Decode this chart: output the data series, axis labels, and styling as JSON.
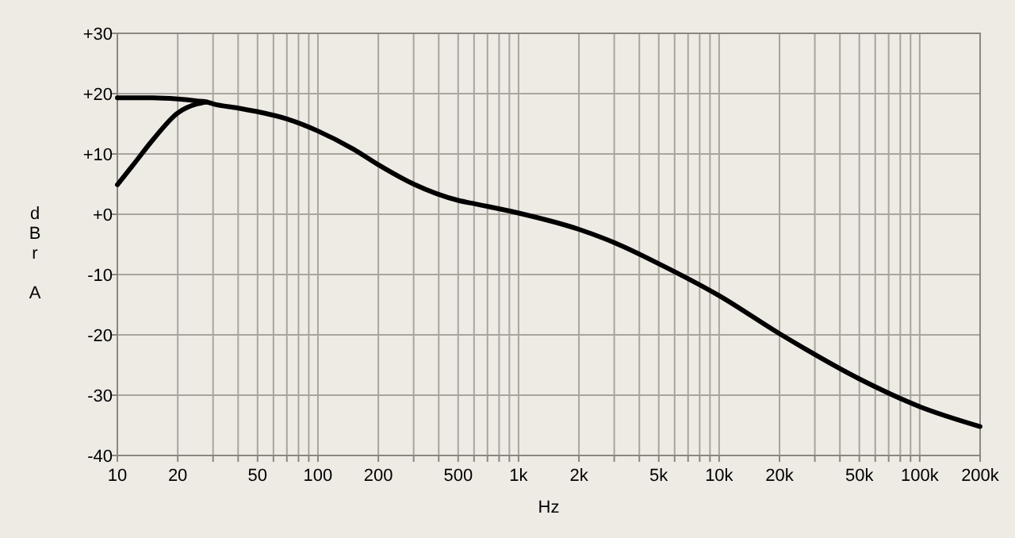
{
  "chart_data": {
    "type": "line",
    "xlabel": "Hz",
    "ylabel": "dBr A",
    "log": "x",
    "grid": true,
    "line_style": "solid",
    "xlim": [
      10,
      200000
    ],
    "ylim": [
      -40,
      30
    ],
    "xticks": [
      10,
      20,
      {
        "value": 30,
        "label": null
      },
      {
        "value": 40,
        "label": null
      },
      50,
      {
        "value": 60,
        "label": null
      },
      {
        "value": 70,
        "label": null
      },
      {
        "value": 80,
        "label": null
      },
      {
        "value": 90,
        "label": null
      },
      100,
      200,
      {
        "value": 300,
        "label": null
      },
      {
        "value": 400,
        "label": null
      },
      500,
      {
        "value": 600,
        "label": null
      },
      {
        "value": 700,
        "label": null
      },
      {
        "value": 800,
        "label": null
      },
      {
        "value": 900,
        "label": null
      },
      {
        "value": 1000,
        "label": "1k"
      },
      {
        "value": 2000,
        "label": "2k"
      },
      {
        "value": 3000,
        "label": null
      },
      {
        "value": 4000,
        "label": null
      },
      {
        "value": 5000,
        "label": "5k"
      },
      {
        "value": 6000,
        "label": null
      },
      {
        "value": 7000,
        "label": null
      },
      {
        "value": 8000,
        "label": null
      },
      {
        "value": 9000,
        "label": null
      },
      {
        "value": 10000,
        "label": "10k"
      },
      {
        "value": 20000,
        "label": "20k"
      },
      {
        "value": 30000,
        "label": null
      },
      {
        "value": 40000,
        "label": null
      },
      {
        "value": 50000,
        "label": "50k"
      },
      {
        "value": 60000,
        "label": null
      },
      {
        "value": 70000,
        "label": null
      },
      {
        "value": 80000,
        "label": null
      },
      {
        "value": 90000,
        "label": null
      },
      {
        "value": 100000,
        "label": "100k"
      },
      {
        "value": 200000,
        "label": "200k"
      }
    ],
    "yticks": [
      {
        "value": 30,
        "label": "+30"
      },
      {
        "value": 20,
        "label": "+20"
      },
      {
        "value": 10,
        "label": "+10"
      },
      {
        "value": 0,
        "label": "+0"
      },
      -10,
      -20,
      -30,
      -40
    ],
    "series": [
      {
        "color": "#000000",
        "x": [
          10,
          15,
          20,
          25,
          28,
          30,
          40,
          50,
          70,
          100,
          150,
          200,
          300,
          500,
          612,
          1000,
          2000,
          3000,
          5000,
          10000,
          20000,
          50000,
          100000,
          200000
        ],
        "values": [
          19.3,
          19.3,
          19.1,
          18.8,
          18.6,
          18.3,
          17.6,
          17.0,
          15.8,
          13.8,
          10.8,
          8.2,
          5.0,
          2.3,
          1.7,
          0.2,
          -2.5,
          -4.7,
          -8.2,
          -13.5,
          -19.8,
          -27.3,
          -31.9,
          -35.2
        ]
      },
      {
        "color": "#000000",
        "x": [
          10,
          12,
          15,
          20,
          25,
          28
        ],
        "values": [
          4.9,
          8.2,
          12.3,
          16.8,
          18.3,
          18.6
        ]
      }
    ]
  }
}
